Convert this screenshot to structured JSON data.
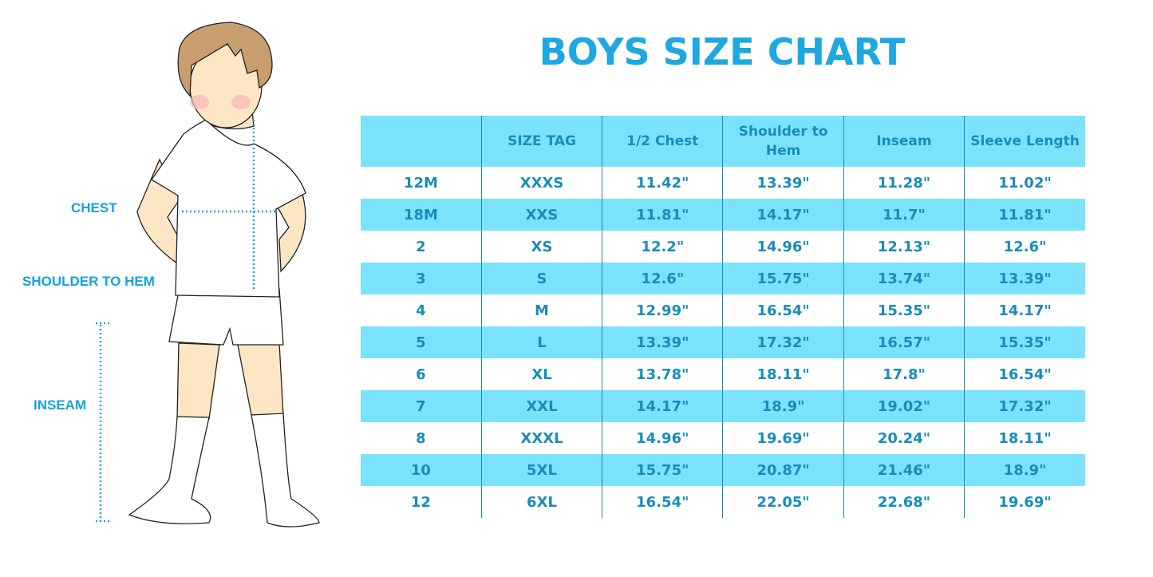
{
  "title": "BOYS SIZE CHART",
  "figure": {
    "labels": [
      "CHEST",
      "SHOULDER TO HEM",
      "INSEAM"
    ]
  },
  "colors": {
    "title": "#1ea7e0",
    "text": "#1a8cba",
    "stripe": "#7ae3fb",
    "dotted_lines": "#13a3dc"
  },
  "table": {
    "headers": [
      "",
      "SIZE TAG",
      "1/2 Chest",
      "Shoulder to Hem",
      "Inseam",
      "Sleeve Length"
    ],
    "rows": [
      [
        "12M",
        "XXXS",
        "11.42\"",
        "13.39\"",
        "11.28\"",
        "11.02\""
      ],
      [
        "18M",
        "XXS",
        "11.81\"",
        "14.17\"",
        "11.7\"",
        "11.81\""
      ],
      [
        "2",
        "XS",
        "12.2\"",
        "14.96\"",
        "12.13\"",
        "12.6\""
      ],
      [
        "3",
        "S",
        "12.6\"",
        "15.75\"",
        "13.74\"",
        "13.39\""
      ],
      [
        "4",
        "M",
        "12.99\"",
        "16.54\"",
        "15.35\"",
        "14.17\""
      ],
      [
        "5",
        "L",
        "13.39\"",
        "17.32\"",
        "16.57\"",
        "15.35\""
      ],
      [
        "6",
        "XL",
        "13.78\"",
        "18.11\"",
        "17.8\"",
        "16.54\""
      ],
      [
        "7",
        "XXL",
        "14.17\"",
        "18.9\"",
        "19.02\"",
        "17.32\""
      ],
      [
        "8",
        "XXXL",
        "14.96\"",
        "19.69\"",
        "20.24\"",
        "18.11\""
      ],
      [
        "10",
        "5XL",
        "15.75\"",
        "20.87\"",
        "21.46\"",
        "18.9\""
      ],
      [
        "12",
        "6XL",
        "16.54\"",
        "22.05\"",
        "22.68\"",
        "19.69\""
      ]
    ]
  }
}
